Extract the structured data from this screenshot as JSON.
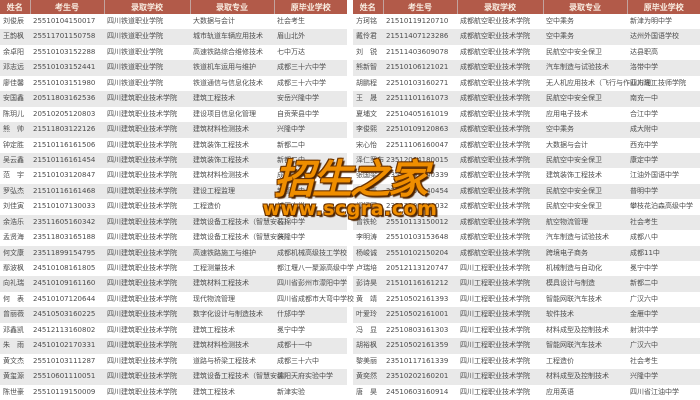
{
  "columns": [
    "姓名",
    "考生号",
    "录取学校",
    "录取专业",
    "原毕业学校"
  ],
  "colors": {
    "header_bg": "#b25a49",
    "header_text": "#faeee2",
    "stripe": "#e9e9e9",
    "body_text": "#4d4d4d",
    "watermark_orange": "#ef8e00"
  },
  "watermark": {
    "title": "招生之家",
    "url": "www.scgra.com"
  },
  "tables": [
    {
      "rows": [
        [
          "刘俊辰",
          "25510104150017",
          "四川铁道职业学院",
          "大数据与会计",
          "社会考生"
        ],
        [
          "王韵枫",
          "25511701150758",
          "四川铁道职业学院",
          "城市轨道车辆应用技术",
          "眉山北外"
        ],
        [
          "余卓阳",
          "25510103152288",
          "四川铁道职业学院",
          "高速铁路综合维修技术",
          "七中万达"
        ],
        [
          "邓志远",
          "25510103152441",
          "四川铁道职业学院",
          "铁道机车运用与维护",
          "成都三十六中学"
        ],
        [
          "廖佳馨",
          "25510103151980",
          "四川铁道职业学院",
          "铁道通信与信息化技术",
          "成都三十六中学"
        ],
        [
          "安国鑫",
          "20511803162536",
          "四川建筑职业技术学院",
          "建筑工程技术",
          "安岳兴隆中学"
        ],
        [
          "陈玥儿",
          "20510205120803",
          "四川建筑职业技术学院",
          "建设项目信息化管理",
          "自贡荣县中学"
        ],
        [
          "熊　帅",
          "21511803122126",
          "四川建筑职业技术学院",
          "建筑材料检测技术",
          "兴隆中学"
        ],
        [
          "钟定胜",
          "21510116161506",
          "四川建筑职业技术学院",
          "建筑装饰工程技术",
          "新都二中"
        ],
        [
          "吴云鑫",
          "21510116161454",
          "四川建筑职业技术学院",
          "建筑装饰工程技术",
          "新都二中"
        ],
        [
          "范　宇",
          "21510103120847",
          "四川建筑职业技术学院",
          "建筑材料检测技术",
          "成都市36中"
        ],
        [
          "罗弘杰",
          "21510116161468",
          "四川建筑职业技术学院",
          "建设工程监理",
          "新都二中"
        ],
        [
          "刘佳寅",
          "21510107130033",
          "四川建筑职业技术学院",
          "工程造价",
          "城厢中学"
        ],
        [
          "余浩乐",
          "23511605160342",
          "四川建筑职业技术学院",
          "建筑设备工程技术（智慧安装）",
          "石棉中学"
        ],
        [
          "孟贤海",
          "23511803165188",
          "四川建筑职业技术学院",
          "建筑设备工程技术（智慧安装）",
          "兴隆中学"
        ],
        [
          "何文康",
          "23511899154795",
          "四川建筑职业技术学院",
          "高速铁路施工与维护",
          "成都机械高级技工学校"
        ],
        [
          "鄢波枫",
          "24510108161805",
          "四川建筑职业技术学院",
          "工程测量技术",
          "都江堰八一聚源高级中学"
        ],
        [
          "向礼瑞",
          "24510109161160",
          "四川建筑职业技术学院",
          "建筑材料工程技术",
          "四川省彭州市濛阳中学"
        ],
        [
          "何　表",
          "24510107120644",
          "四川建筑职业技术学院",
          "现代物流管理",
          "四川省成都市大弯中学校"
        ],
        [
          "曾丽薇",
          "24510503160225",
          "四川建筑职业技术学院",
          "数字化设计与制造技术",
          "什邡中学"
        ],
        [
          "邓鑫凯",
          "24512113160802",
          "四川建筑职业技术学院",
          "建筑工程技术",
          "冕宁中学"
        ],
        [
          "朱　雨",
          "24510102170331",
          "四川建筑职业技术学院",
          "建筑材料检测技术",
          "成都十一中"
        ],
        [
          "黄文杰",
          "25510103111287",
          "四川建筑职业技术学院",
          "道路与桥梁工程技术",
          "成都三十六中"
        ],
        [
          "黄玺源",
          "25510601110051",
          "四川建筑职业技术学院",
          "建筑设备工程技术（智慧安装）",
          "绵阳天府实验中学"
        ],
        [
          "陈世豪",
          "25510119150009",
          "四川建筑职业技术学院",
          "建筑工程技术",
          "新津实验"
        ]
      ]
    },
    {
      "rows": [
        [
          "方珂铭",
          "21510119120710",
          "成都航空职业技术学院",
          "空中乘务",
          "新津为明中学"
        ],
        [
          "戴伶君",
          "21511407123286",
          "成都航空职业技术学院",
          "空中乘务",
          "达州外国语学校"
        ],
        [
          "刘　锐",
          "21511403609078",
          "成都航空职业技术学院",
          "民航空中安全保卫",
          "达县职高"
        ],
        [
          "熊新智",
          "21510106121021",
          "成都航空职业技术学院",
          "汽车制造与试验技术",
          "洛带中学"
        ],
        [
          "胡鹏程",
          "22510103160271",
          "成都航空职业技术学院",
          "无人机应用技术（飞行与作业方向）",
          "四川理工技师学院"
        ],
        [
          "王　晟",
          "22511101161073",
          "成都航空职业技术学院",
          "民航空中安全保卫",
          "南充一中"
        ],
        [
          "夏埔文",
          "22510405161019",
          "成都航空职业技术学院",
          "应用电子技术",
          "合江中学"
        ],
        [
          "李俊熙",
          "22510109120863",
          "成都航空职业技术学院",
          "空中乘务",
          "成大附中"
        ],
        [
          "宋心怡",
          "22511106160047",
          "成都航空职业技术学院",
          "大数据与会计",
          "西充中学"
        ],
        [
          "泽仁罗布",
          "23512004180015",
          "成都航空职业技术学院",
          "民航空中安全保卫",
          "康定中学"
        ],
        [
          "张国梁",
          "23512603140339",
          "成都航空职业技术学院",
          "建筑装饰工程技术",
          "江油外国语中学"
        ],
        [
          "刘梓豪",
          "23512106140454",
          "成都航空职业技术学院",
          "民航空中安全保卫",
          "普明中学"
        ],
        [
          "郑行国",
          "23512106140032",
          "成都航空职业技术学院",
          "民航空中安全保卫",
          "攀枝花泊森高级中学"
        ],
        [
          "曾铁轮",
          "25510113150012",
          "成都航空职业技术学院",
          "航空物流管理",
          "社会考生"
        ],
        [
          "李明涛",
          "25510103153648",
          "成都航空职业技术学院",
          "汽车制造与试验技术",
          "成都八中"
        ],
        [
          "杨峻诚",
          "25510102150204",
          "成都航空职业技术学院",
          "跨境电子商务",
          "成都11中"
        ],
        [
          "卢瑞培",
          "20512113120747",
          "四川工程职业技术学院",
          "机械制造与自动化",
          "冕宁中学"
        ],
        [
          "彭诗昊",
          "21510116161212",
          "四川工程职业技术学院",
          "模具设计与制造",
          "新都二中"
        ],
        [
          "黄　靖",
          "22510502161393",
          "四川工程职业技术学院",
          "智能网联汽车技术",
          "广汉六中"
        ],
        [
          "叶爱玲",
          "22510502161001",
          "四川工程职业技术学院",
          "软件技术",
          "金雁中学"
        ],
        [
          "冯　显",
          "22510803161303",
          "四川工程职业技术学院",
          "材料成型及控制技术",
          "射洪中学"
        ],
        [
          "胡裕枫",
          "22510502161359",
          "四川工程职业技术学院",
          "智能网联汽车技术",
          "广汉六中"
        ],
        [
          "黎美丽",
          "23510117161339",
          "四川工程职业技术学院",
          "工程造价",
          "社会考生"
        ],
        [
          "黄奕然",
          "23510202160201",
          "四川工程职业技术学院",
          "材料成型及控制技术",
          "兴隆中学"
        ],
        [
          "唐　昊",
          "24510603160914",
          "四川工程职业技术学院",
          "应用英语",
          "四川省江油中学"
        ]
      ]
    }
  ]
}
